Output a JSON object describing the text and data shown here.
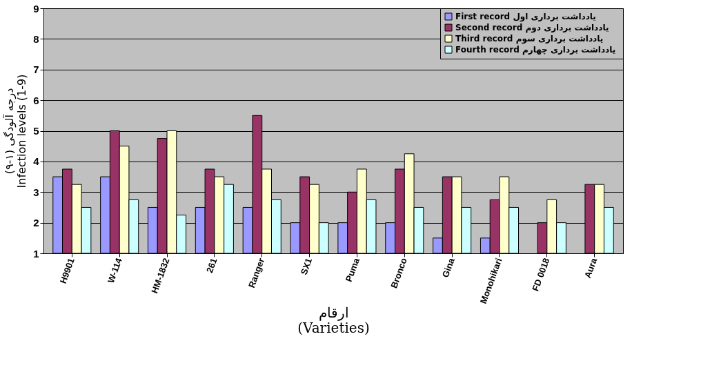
{
  "chart_data": {
    "type": "bar",
    "ylabel": "درجه آلودگی (۱-۹)\nInfection levels (1-9)",
    "xlabel": "ارقام\n(Varieties)",
    "categories": [
      "H9901",
      "W-114",
      "HM-1832",
      "261",
      "Ranger",
      "SX1",
      "Puma",
      "Bronco",
      "Gina",
      "Monohikari",
      "FD 0018",
      "Aura"
    ],
    "series": [
      {
        "name": "First record  یادداشت برداری اول",
        "color": "#9999ff",
        "values": [
          3.5,
          3.5,
          2.5,
          2.5,
          2.5,
          2,
          2,
          2,
          1.5,
          1.5,
          1,
          1
        ]
      },
      {
        "name": "Second record  یادداشت برداری دوم",
        "color": "#993366",
        "values": [
          3.75,
          5,
          4.75,
          3.75,
          5.5,
          3.5,
          3,
          3.75,
          3.5,
          2.75,
          2,
          3.25
        ]
      },
      {
        "name": "Third record  یادداشت برداری سوم",
        "color": "#ffffcc",
        "values": [
          3.25,
          4.5,
          5,
          3.5,
          3.75,
          3.25,
          3.75,
          4.25,
          3.5,
          3.5,
          2.75,
          3.25
        ]
      },
      {
        "name": "Fourth record  یادداشت برداری چهارم",
        "color": "#ccffff",
        "values": [
          2.5,
          2.75,
          2.25,
          3.25,
          2.75,
          2,
          2.75,
          2.5,
          2.5,
          2.5,
          2,
          2.5
        ]
      }
    ],
    "ylim": [
      1,
      9
    ],
    "yticks": [
      1,
      2,
      3,
      4,
      5,
      6,
      7,
      8,
      9
    ],
    "grid": "y",
    "legend": "top right"
  }
}
